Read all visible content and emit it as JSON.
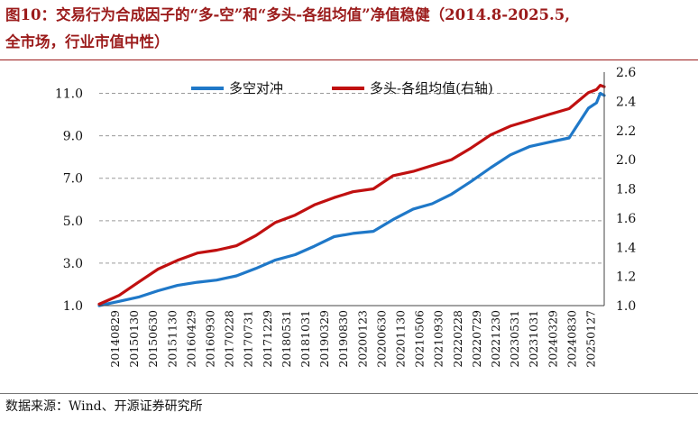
{
  "title": {
    "line1": "图10：交易行为合成因子的“多-空”和“多头-各组均值”净值稳健（2014.8-2025.5,",
    "line2": "全市场，行业市值中性）"
  },
  "source": "数据来源：Wind、开源证券研究所",
  "chart_data": {
    "type": "line",
    "title": "图10：交易行为合成因子的“多-空”和“多头-各组均值”净值稳健（2014.8-2025.5,全市场，行业市值中性）",
    "legend_placement": "top",
    "grid": "horizontal",
    "x_tick_labels": [
      "20140829",
      "20150130",
      "20150630",
      "20151130",
      "20160429",
      "20160930",
      "20170228",
      "20170731",
      "20171229",
      "20180531",
      "20181031",
      "20190329",
      "20190830",
      "20200123",
      "20200630",
      "20201130",
      "20210506",
      "20210930",
      "20220228",
      "20220729",
      "20221230",
      "20230531",
      "20231031",
      "20240329",
      "20240830",
      "20250127"
    ],
    "left_axis": {
      "ticks": [
        "1.0",
        "3.0",
        "5.0",
        "7.0",
        "9.0",
        "11.0"
      ],
      "ylim": [
        1.0,
        12.0
      ]
    },
    "right_axis": {
      "ticks": [
        "1.0",
        "1.2",
        "1.4",
        "1.6",
        "1.8",
        "2.0",
        "2.2",
        "2.4",
        "2.6"
      ],
      "ylim": [
        1.0,
        2.6
      ]
    },
    "x_range": [
      "2014-08-29",
      "2025-05-30"
    ],
    "series": [
      {
        "name": "多空对冲",
        "axis": "left",
        "color": "#1f78c8",
        "points": [
          [
            "2014-08-29",
            1.0
          ],
          [
            "2015-01-30",
            1.2
          ],
          [
            "2015-06-30",
            1.4
          ],
          [
            "2015-11-30",
            1.7
          ],
          [
            "2016-04-29",
            1.95
          ],
          [
            "2016-09-30",
            2.1
          ],
          [
            "2017-02-28",
            2.2
          ],
          [
            "2017-07-31",
            2.4
          ],
          [
            "2017-12-29",
            2.75
          ],
          [
            "2018-05-31",
            3.15
          ],
          [
            "2018-10-31",
            3.4
          ],
          [
            "2019-03-29",
            3.8
          ],
          [
            "2019-08-30",
            4.25
          ],
          [
            "2020-01-23",
            4.4
          ],
          [
            "2020-06-30",
            4.5
          ],
          [
            "2020-11-30",
            5.05
          ],
          [
            "2021-05-06",
            5.55
          ],
          [
            "2021-09-30",
            5.8
          ],
          [
            "2022-02-28",
            6.25
          ],
          [
            "2022-07-29",
            6.85
          ],
          [
            "2022-12-30",
            7.5
          ],
          [
            "2023-05-31",
            8.1
          ],
          [
            "2023-10-31",
            8.5
          ],
          [
            "2024-03-29",
            8.7
          ],
          [
            "2024-08-30",
            8.9
          ],
          [
            "2025-01-27",
            10.3
          ],
          [
            "2025-03-31",
            10.55
          ],
          [
            "2025-04-30",
            11.0
          ],
          [
            "2025-05-30",
            10.9
          ]
        ]
      },
      {
        "name": "多头-各组均值(右轴)",
        "axis": "right",
        "color": "#c01010",
        "points": [
          [
            "2014-08-29",
            1.01
          ],
          [
            "2015-01-30",
            1.07
          ],
          [
            "2015-06-30",
            1.16
          ],
          [
            "2015-11-30",
            1.25
          ],
          [
            "2016-04-29",
            1.31
          ],
          [
            "2016-09-30",
            1.36
          ],
          [
            "2017-02-28",
            1.38
          ],
          [
            "2017-07-31",
            1.41
          ],
          [
            "2017-12-29",
            1.48
          ],
          [
            "2018-05-31",
            1.57
          ],
          [
            "2018-10-31",
            1.62
          ],
          [
            "2019-03-29",
            1.69
          ],
          [
            "2019-08-30",
            1.74
          ],
          [
            "2020-01-23",
            1.78
          ],
          [
            "2020-06-30",
            1.8
          ],
          [
            "2020-11-30",
            1.89
          ],
          [
            "2021-05-06",
            1.92
          ],
          [
            "2021-09-30",
            1.96
          ],
          [
            "2022-02-28",
            2.0
          ],
          [
            "2022-07-29",
            2.08
          ],
          [
            "2022-12-30",
            2.17
          ],
          [
            "2023-05-31",
            2.23
          ],
          [
            "2023-10-31",
            2.27
          ],
          [
            "2024-03-29",
            2.31
          ],
          [
            "2024-08-30",
            2.35
          ],
          [
            "2025-01-27",
            2.46
          ],
          [
            "2025-03-31",
            2.48
          ],
          [
            "2025-04-30",
            2.51
          ],
          [
            "2025-05-30",
            2.5
          ]
        ]
      }
    ]
  }
}
